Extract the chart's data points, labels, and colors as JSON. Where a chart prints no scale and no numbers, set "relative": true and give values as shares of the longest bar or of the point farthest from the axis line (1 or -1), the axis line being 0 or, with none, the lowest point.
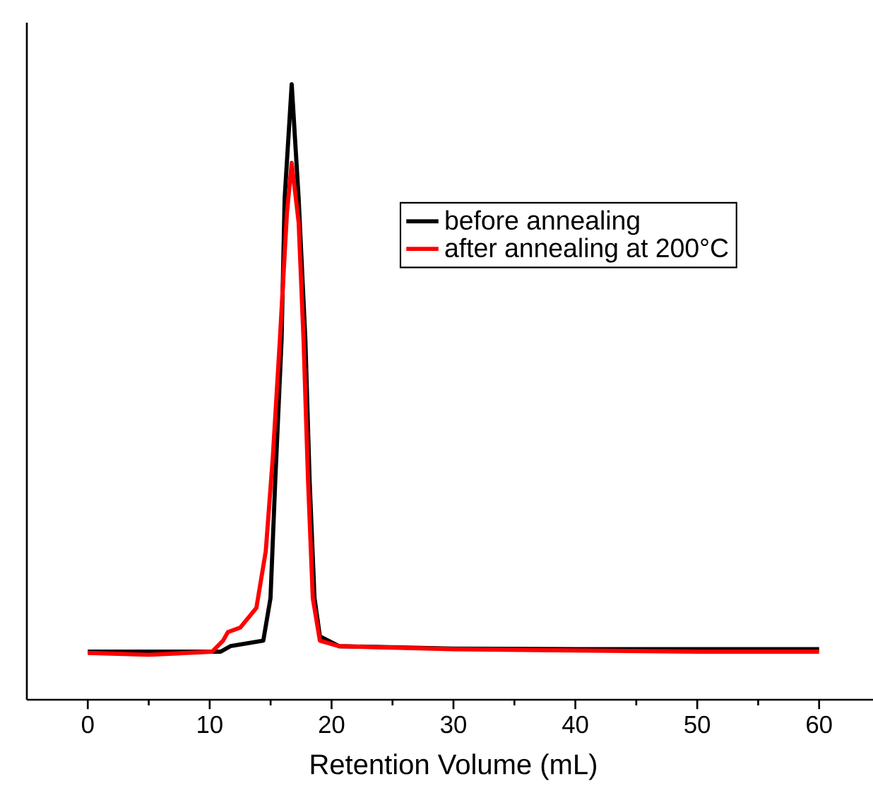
{
  "chart_data": {
    "type": "line",
    "relative": true,
    "xlabel": "Retention Volume (mL)",
    "xlim": [
      -5,
      65
    ],
    "xticks": [
      0,
      10,
      20,
      30,
      40,
      50,
      60
    ],
    "legend": "top right",
    "series": [
      {
        "name": "before annealing",
        "color": "#000000",
        "x": [
          0,
          5,
          10,
          10.9,
          11.7,
          14.4,
          14.99,
          15.38,
          15.9,
          16.15,
          16.73,
          17.3,
          17.85,
          18.2,
          18.6,
          19.04,
          20.6,
          30,
          40,
          50,
          60
        ],
        "values": [
          0.078,
          0.078,
          0.078,
          0.078,
          0.087,
          0.096,
          0.165,
          0.356,
          0.585,
          0.814,
          1.0,
          0.814,
          0.585,
          0.356,
          0.165,
          0.103,
          0.087,
          0.083,
          0.082,
          0.082,
          0.082
        ]
      },
      {
        "name": "after annealing at 200°C",
        "color": "#ff0000",
        "x": [
          0,
          5,
          10.2,
          11.1,
          11.5,
          12.5,
          13.83,
          14.6,
          15.18,
          15.76,
          16.34,
          16.73,
          17.3,
          17.7,
          18.07,
          18.46,
          19.04,
          20.6,
          30,
          40,
          50,
          60
        ],
        "values": [
          0.076,
          0.073,
          0.078,
          0.096,
          0.11,
          0.117,
          0.149,
          0.241,
          0.394,
          0.585,
          0.791,
          0.872,
          0.775,
          0.585,
          0.356,
          0.165,
          0.096,
          0.087,
          0.082,
          0.08,
          0.078,
          0.078
        ]
      }
    ]
  }
}
